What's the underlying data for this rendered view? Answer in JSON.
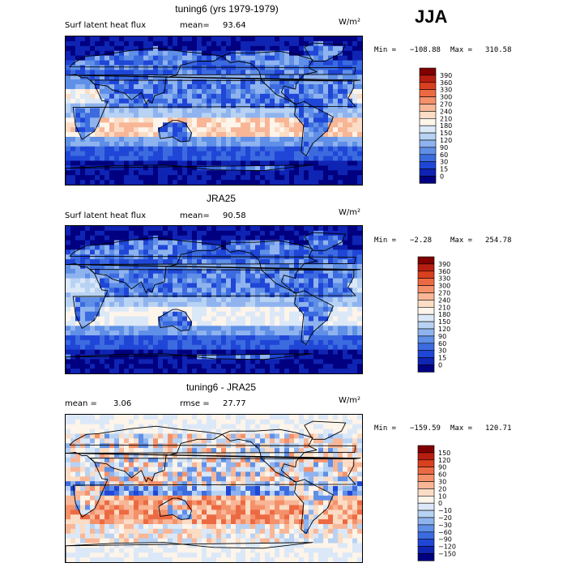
{
  "header": {
    "season": "JJA"
  },
  "chart_data": [
    {
      "type": "heatmap",
      "title": "tuning6 (yrs 1979-1979)",
      "variable_label": "Surf latent heat flux",
      "stat1_label": "mean=",
      "stat1_value": "93.64",
      "units": "W/m²",
      "min_label": "Min =",
      "min_value": "−108.88",
      "max_label": "Max =",
      "max_value": "310.58",
      "contour_levels": [
        "390",
        "360",
        "330",
        "300",
        "270",
        "240",
        "210",
        "180",
        "150",
        "120",
        "90",
        "60",
        "30",
        "15",
        "0"
      ],
      "colors": [
        "#800000",
        "#b81e10",
        "#d9401f",
        "#ec6a43",
        "#f4916a",
        "#f8b697",
        "#fbdcc4",
        "#fdf4ea",
        "#dbe8f8",
        "#b8d2f3",
        "#8fb3ee",
        "#5f8fe6",
        "#3c6be0",
        "#1f46d6",
        "#0f24b3",
        "#000080"
      ]
    },
    {
      "type": "heatmap",
      "title": "JRA25",
      "variable_label": "Surf latent heat flux",
      "stat1_label": "mean=",
      "stat1_value": "90.58",
      "units": "W/m²",
      "min_label": "Min =",
      "min_value": "−2.28",
      "max_label": "Max =",
      "max_value": "254.78",
      "contour_levels": [
        "390",
        "360",
        "330",
        "300",
        "270",
        "240",
        "210",
        "180",
        "150",
        "120",
        "90",
        "60",
        "30",
        "15",
        "0"
      ],
      "colors": [
        "#800000",
        "#b81e10",
        "#d9401f",
        "#ec6a43",
        "#f4916a",
        "#f8b697",
        "#fbdcc4",
        "#fdf4ea",
        "#dbe8f8",
        "#b8d2f3",
        "#8fb3ee",
        "#5f8fe6",
        "#3c6be0",
        "#1f46d6",
        "#0f24b3",
        "#000080"
      ]
    },
    {
      "type": "heatmap",
      "title": "tuning6 - JRA25",
      "variable_label": "mean =",
      "stat1_label": "",
      "stat1_value": "3.06",
      "stat2_label": "rmse =",
      "stat2_value": "27.77",
      "units": "W/m²",
      "min_label": "Min =",
      "min_value": "−159.59",
      "max_label": "Max =",
      "max_value": "120.71",
      "contour_levels": [
        "150",
        "120",
        "90",
        "60",
        "30",
        "20",
        "10",
        "0",
        "−10",
        "−20",
        "−30",
        "−60",
        "−90",
        "−120",
        "−150"
      ],
      "colors": [
        "#800000",
        "#b81e10",
        "#d9401f",
        "#ec6a43",
        "#f4916a",
        "#f8b697",
        "#fbdcc4",
        "#fdf4ea",
        "#dbe8f8",
        "#b8d2f3",
        "#8fb3ee",
        "#5f8fe6",
        "#3c6be0",
        "#1f46d6",
        "#0f24b3",
        "#000080"
      ]
    }
  ]
}
